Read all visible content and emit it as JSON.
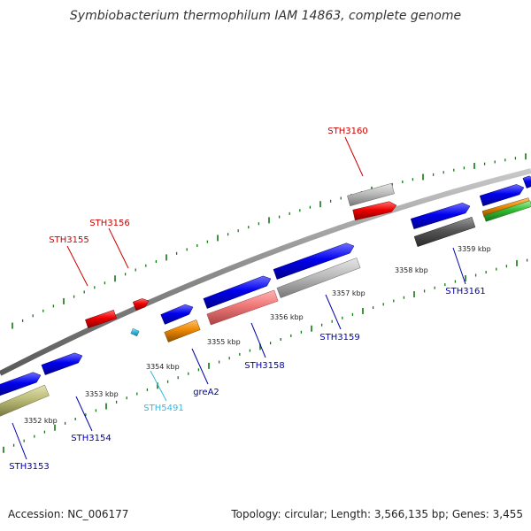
{
  "title": "Symbiobacterium thermophilum IAM 14863, complete genome",
  "footer": {
    "accession_label": "Accession:",
    "accession": "NC_006177",
    "topology_text": "Topology: circular; Length: 3,566,135 bp; Genes: 3,455"
  },
  "colors": {
    "forward": "#0000ee",
    "reverse_label": "#0000aa",
    "red": "#ee0000",
    "cyan": "#33bbdd",
    "orange": "#ee8800",
    "olive": "#bbbb77",
    "grey": "#bbbbbb",
    "dark_grey": "#555555",
    "pink": "#ee7777",
    "green": "#33bb33",
    "backbone": "#888888",
    "ticks": "#117711"
  },
  "scale_labels": [
    "3352 kbp",
    "3353 kbp",
    "3354 kbp",
    "3355 kbp",
    "3356 kbp",
    "3357 kbp",
    "3358 kbp",
    "3359 kbp"
  ],
  "gene_labels": [
    {
      "name": "STH3155",
      "color": "#cc0000"
    },
    {
      "name": "STH3156",
      "color": "#cc0000"
    },
    {
      "name": "STH3160",
      "color": "#cc0000"
    },
    {
      "name": "STH3153",
      "color": "#0000aa"
    },
    {
      "name": "STH3154",
      "color": "#0000aa"
    },
    {
      "name": "STH5491",
      "color": "#33bbdd"
    },
    {
      "name": "greA2",
      "color": "#0000aa"
    },
    {
      "name": "STH3158",
      "color": "#0000aa"
    },
    {
      "name": "STH3159",
      "color": "#0000aa"
    },
    {
      "name": "STH3161",
      "color": "#0000aa"
    }
  ]
}
